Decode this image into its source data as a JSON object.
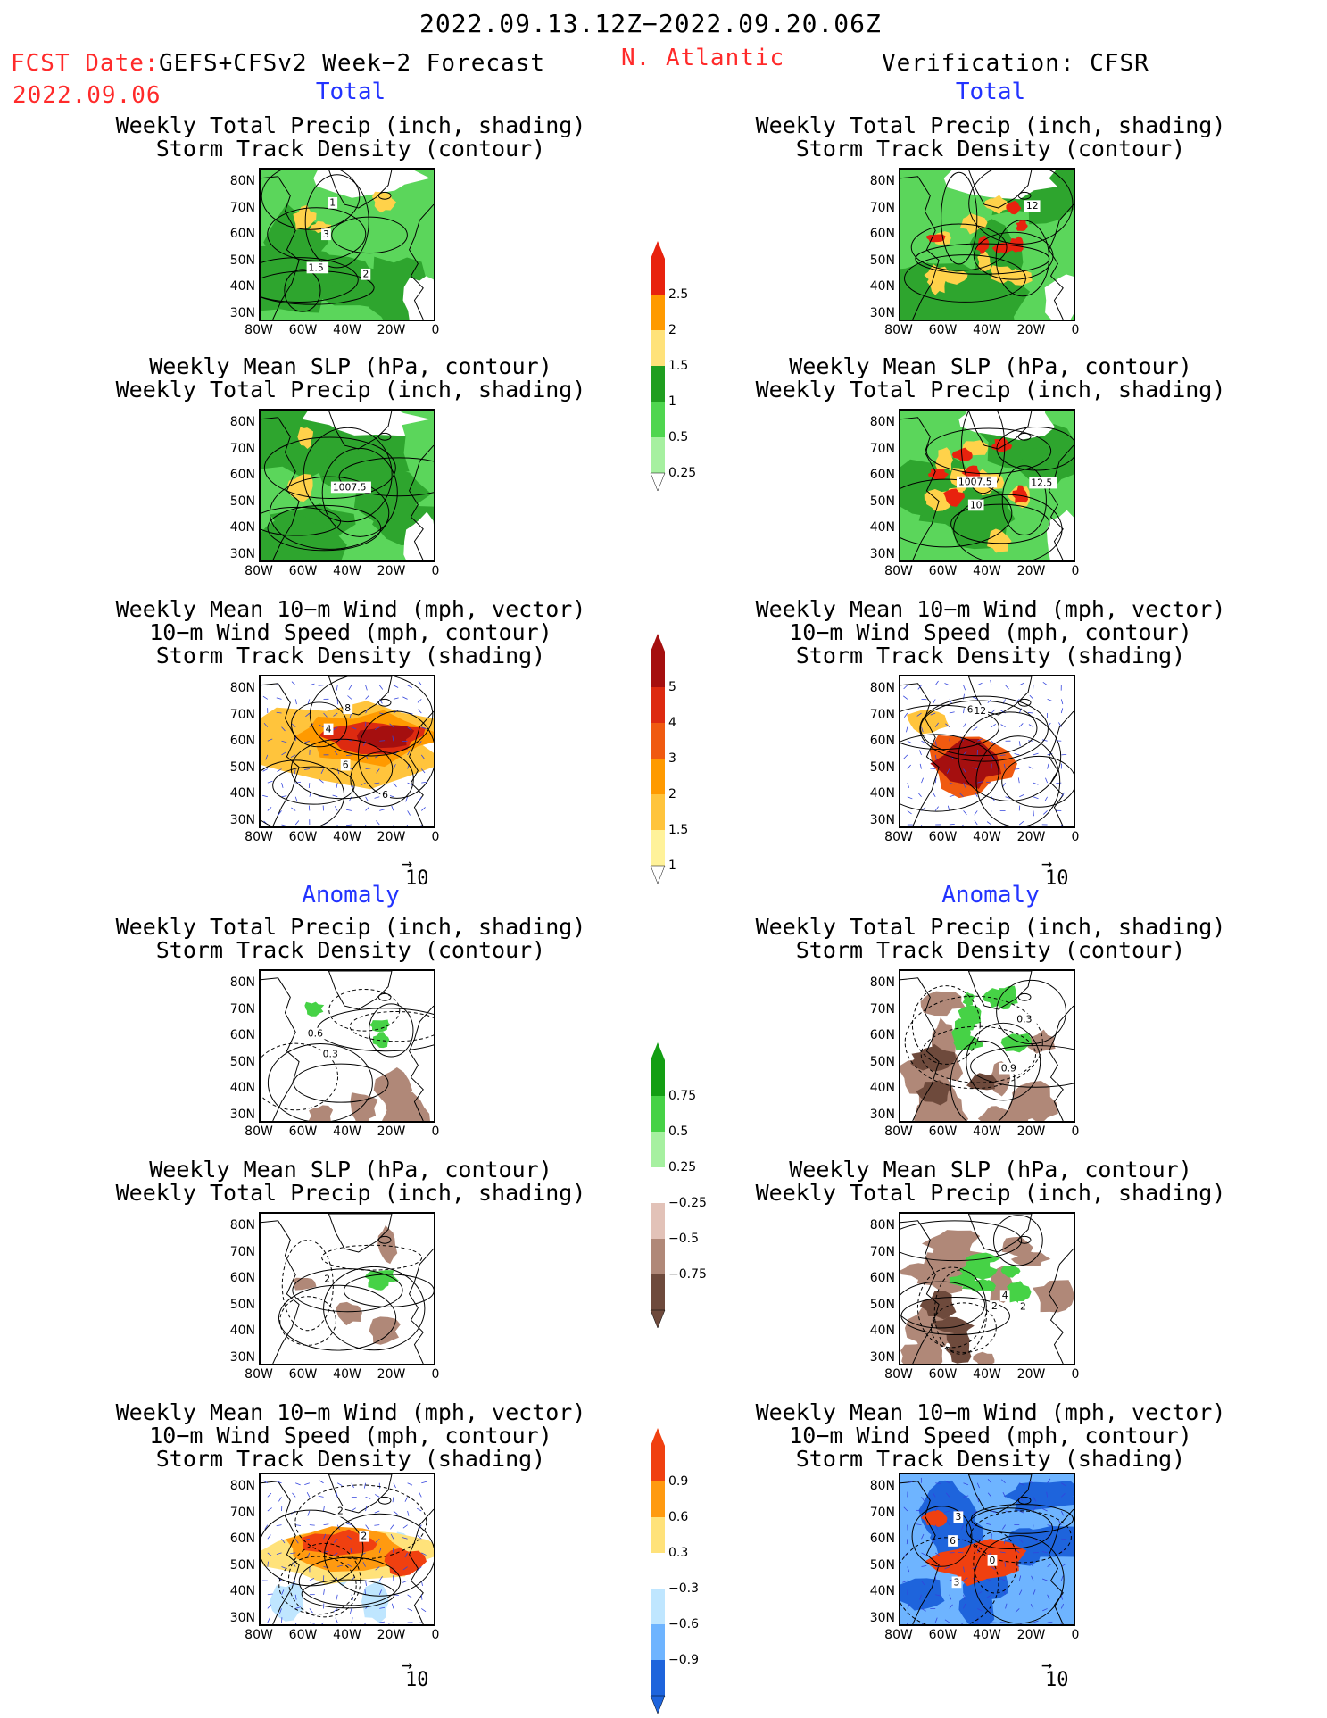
{
  "header": {
    "date_range": "2022.09.13.12Z−2022.09.20.06Z",
    "fcst_label": "FCST Date:",
    "forecast_name": "GEFS+CFSv2 Week−2 Forecast",
    "fcst_date": "2022.09.06",
    "region": "N. Atlantic",
    "verification": "Verification: CFSR"
  },
  "sections": {
    "total": "Total",
    "anomaly": "Anomaly"
  },
  "panel_titles": {
    "precip_track": [
      "Weekly Total Precip (inch, shading)",
      "Storm Track Density (contour)"
    ],
    "slp_precip": [
      "Weekly Mean SLP (hPa, contour)",
      "Weekly Total Precip (inch, shading)"
    ],
    "wind_track": [
      "Weekly Mean 10−m Wind (mph, vector)",
      "10−m Wind Speed (mph, contour)",
      "Storm Track Density (shading)"
    ]
  },
  "axes": {
    "lat": [
      "80N",
      "70N",
      "60N",
      "50N",
      "40N",
      "30N"
    ],
    "lon": [
      "80W",
      "60W",
      "40W",
      "20W",
      "0"
    ]
  },
  "vector_ref": "10",
  "contour_labels": {
    "t_fc_precip": [
      "3",
      "2",
      "1.5",
      "1"
    ],
    "t_fc_slp": [
      "1007.5"
    ],
    "t_fc_wind": [
      "6",
      "6",
      "8",
      "4"
    ],
    "t_an_precip": [
      "12"
    ],
    "t_an_slp": [
      "12.5",
      "10",
      "1007.5"
    ],
    "t_an_wind": [
      "6",
      "12"
    ],
    "a_fc_precip": [
      "0.3",
      "0.6"
    ],
    "a_fc_slp": [
      "2"
    ],
    "a_fc_wind": [
      "2",
      "2"
    ],
    "a_an_precip": [
      "0.3",
      "0.9"
    ],
    "a_an_slp": [
      "4",
      "2",
      "2"
    ],
    "a_an_wind": [
      "0",
      "3",
      "3",
      "6"
    ]
  },
  "colorbars": {
    "precip_total": {
      "labels": [
        "2.5",
        "2",
        "1.5",
        "1",
        "0.5",
        "0.25"
      ],
      "colors": [
        "#e8220e",
        "#ff9a00",
        "#ffe27a",
        "#1f9e1f",
        "#4fd64f",
        "#a6f0a0"
      ]
    },
    "track_total": {
      "labels": [
        "5",
        "4",
        "3",
        "2",
        "1.5",
        "1"
      ],
      "colors": [
        "#a50f0f",
        "#dd2a10",
        "#f05a10",
        "#ff9a00",
        "#ffc43c",
        "#fff29a"
      ]
    },
    "precip_anom": {
      "labels": [
        "0.75",
        "0.5",
        "0.25",
        "−0.25",
        "−0.5",
        "−0.75"
      ],
      "colors": [
        "#139e13",
        "#46d246",
        "#a6f0a0",
        "#ffffff",
        "#e2c2b8",
        "#b08878",
        "#6e4a3c"
      ]
    },
    "track_anom": {
      "labels": [
        "0.9",
        "0.6",
        "0.3",
        "−0.3",
        "−0.6",
        "−0.9"
      ],
      "colors": [
        "#f04010",
        "#ff9a10",
        "#ffe27a",
        "#ffffff",
        "#bfe6ff",
        "#6eb4ff",
        "#1e64dc"
      ]
    }
  }
}
